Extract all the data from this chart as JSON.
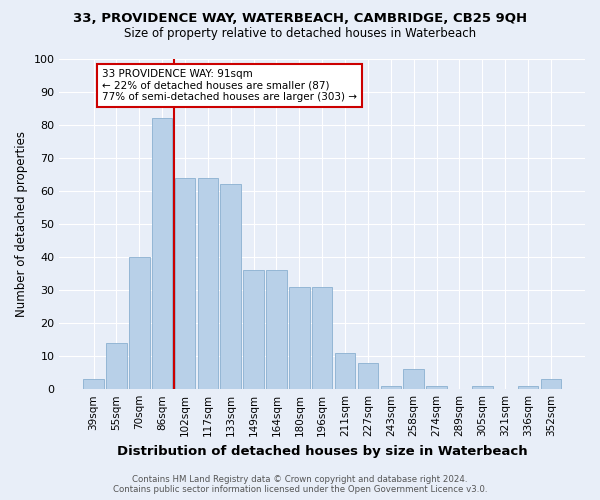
{
  "title": "33, PROVIDENCE WAY, WATERBEACH, CAMBRIDGE, CB25 9QH",
  "subtitle": "Size of property relative to detached houses in Waterbeach",
  "xlabel": "Distribution of detached houses by size in Waterbeach",
  "ylabel": "Number of detached properties",
  "bar_labels": [
    "39sqm",
    "55sqm",
    "70sqm",
    "86sqm",
    "102sqm",
    "117sqm",
    "133sqm",
    "149sqm",
    "164sqm",
    "180sqm",
    "196sqm",
    "211sqm",
    "227sqm",
    "243sqm",
    "258sqm",
    "274sqm",
    "289sqm",
    "305sqm",
    "321sqm",
    "336sqm",
    "352sqm"
  ],
  "bar_values": [
    3,
    14,
    40,
    82,
    64,
    64,
    62,
    36,
    36,
    31,
    31,
    11,
    8,
    1,
    6,
    1,
    0,
    1,
    0,
    1,
    3
  ],
  "bar_color": "#b8d0e8",
  "bar_edge_color": "#8ab0d0",
  "property_line_color": "#cc0000",
  "annotation_text": "33 PROVIDENCE WAY: 91sqm\n← 22% of detached houses are smaller (87)\n77% of semi-detached houses are larger (303) →",
  "annotation_box_color": "#ffffff",
  "annotation_box_edge_color": "#cc0000",
  "ylim": [
    0,
    100
  ],
  "background_color": "#e8eef8",
  "grid_color": "#ffffff",
  "footer_line1": "Contains HM Land Registry data © Crown copyright and database right 2024.",
  "footer_line2": "Contains public sector information licensed under the Open Government Licence v3.0."
}
